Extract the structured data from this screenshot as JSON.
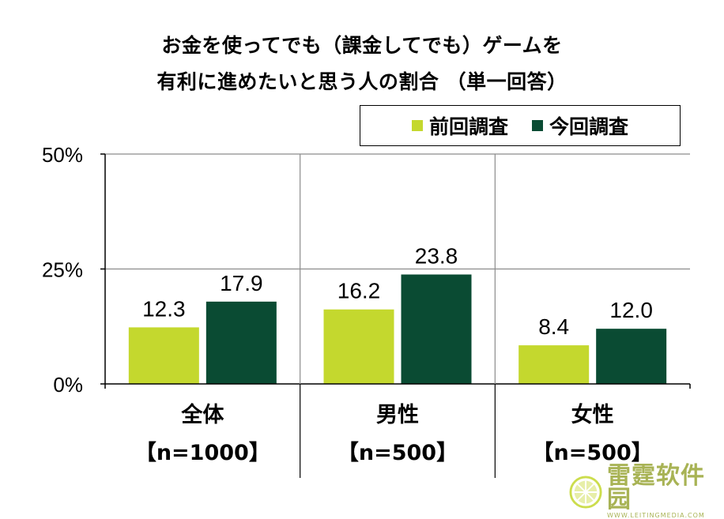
{
  "chart_data": {
    "type": "bar",
    "title_lines": [
      "お金を使ってでも（課金してでも）ゲームを",
      "有利に進めたいと思う人の割合 （単一回答）"
    ],
    "categories": [
      {
        "name": "全体",
        "sample": "【n=1000】"
      },
      {
        "name": "男性",
        "sample": "【n=500】"
      },
      {
        "name": "女性",
        "sample": "【n=500】"
      }
    ],
    "series": [
      {
        "name": "前回調査",
        "color": "#c4d82e",
        "values": [
          12.3,
          16.2,
          8.4
        ],
        "labels": [
          "12.3",
          "16.2",
          "8.4"
        ]
      },
      {
        "name": "今回調査",
        "color": "#0a4b33",
        "values": [
          17.9,
          23.8,
          12.0
        ],
        "labels": [
          "17.9",
          "23.8",
          "12.0"
        ]
      }
    ],
    "ylim": [
      0,
      50
    ],
    "yticks": [
      {
        "value": 0,
        "label": "0%"
      },
      {
        "value": 25,
        "label": "25%"
      },
      {
        "value": 50,
        "label": "50%"
      }
    ],
    "legend_position": "top-right",
    "grid": true
  },
  "watermark": {
    "text": "雷霆软件园",
    "sub": "WWW.LEITINGMEDIA.COM",
    "icon": "lemon-slice-icon"
  }
}
